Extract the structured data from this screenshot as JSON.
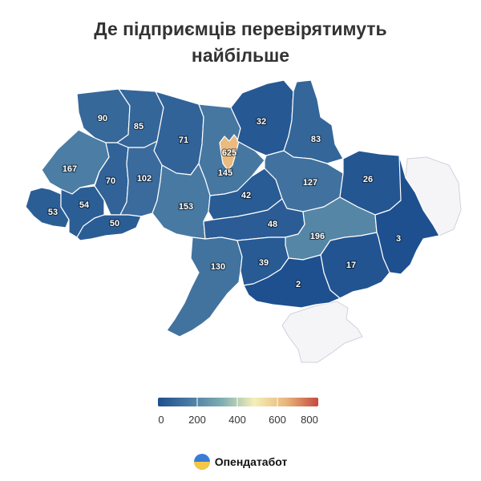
{
  "title": {
    "line1": "Де підприємців перевірятимуть",
    "line2": "найбільше"
  },
  "regions": [
    {
      "id": "volyn",
      "value": 90
    },
    {
      "id": "rivne",
      "value": 85
    },
    {
      "id": "zhytomyr",
      "value": 71
    },
    {
      "id": "kyiv-oblast",
      "value": 145
    },
    {
      "id": "kyiv-city",
      "value": 625
    },
    {
      "id": "chernihiv",
      "value": 32
    },
    {
      "id": "sumy",
      "value": 83
    },
    {
      "id": "lviv",
      "value": 167
    },
    {
      "id": "ternopil",
      "value": 70
    },
    {
      "id": "khmelnytskyi",
      "value": 102
    },
    {
      "id": "vinnytsia",
      "value": 153
    },
    {
      "id": "cherkasy",
      "value": 42
    },
    {
      "id": "poltava",
      "value": 127
    },
    {
      "id": "kharkiv",
      "value": 26
    },
    {
      "id": "zakarpattia",
      "value": 53
    },
    {
      "id": "ivano-frankivsk",
      "value": 54
    },
    {
      "id": "chernivtsi",
      "value": 50
    },
    {
      "id": "kirovohrad",
      "value": 48
    },
    {
      "id": "dnipropetrovsk",
      "value": 196
    },
    {
      "id": "luhansk",
      "value": 3
    },
    {
      "id": "odesa",
      "value": 130
    },
    {
      "id": "mykolaiv",
      "value": 39
    },
    {
      "id": "zaporizhzhia",
      "value": 17
    },
    {
      "id": "kherson",
      "value": 2
    },
    {
      "id": "donetsk-occupied",
      "value": null
    },
    {
      "id": "crimea-occupied",
      "value": null
    }
  ],
  "legend": {
    "range": [
      0,
      800
    ],
    "ticks": [
      "0",
      "200",
      "400",
      "600",
      "800"
    ],
    "colors": [
      "#1d4f8f",
      "#4a7ba3",
      "#7eaeb2",
      "#f5efb8",
      "#e8b67a",
      "#c44a3f"
    ]
  },
  "brand": {
    "name": "Опендатабот",
    "logo_colors": [
      "#3a7bd5",
      "#f6c744"
    ]
  }
}
